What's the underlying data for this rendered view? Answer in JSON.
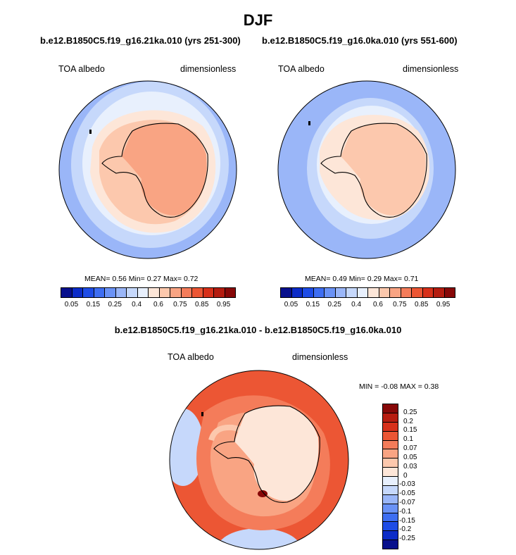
{
  "page": {
    "main_title": "DJF",
    "panel_left_title": "b.e12.B1850C5.f19_g16.21ka.010 (yrs 251-300)",
    "panel_right_title": "b.e12.B1850C5.f19_g16.0ka.010 (yrs 551-600)",
    "diff_title": "b.e12.B1850C5.f19_g16.21ka.010 - b.e12.B1850C5.f19_g16.0ka.010"
  },
  "panels": {
    "left": {
      "variable": "TOA albedo",
      "units": "dimensionless",
      "stats": "MEAN=   0.56  Min=   0.27  Max=   0.72"
    },
    "right": {
      "variable": "TOA albedo",
      "units": "dimensionless",
      "stats": "MEAN=   0.49  Min=   0.29  Max=   0.71"
    },
    "diff": {
      "variable": "TOA albedo",
      "units": "dimensionless",
      "stats": "MIN =  -0.08 MAX =   0.38"
    }
  },
  "colorbar_abs": {
    "colors": [
      "#08108c",
      "#0c2cc8",
      "#1e4ce6",
      "#3e6ef2",
      "#6a92f6",
      "#9ab6f8",
      "#c6d8fb",
      "#e8f0fd",
      "#fde6d8",
      "#fcc8ad",
      "#f9a483",
      "#f47c5a",
      "#ec5634",
      "#d7301a",
      "#b41c10",
      "#870808"
    ],
    "tick_labels": [
      "0.05",
      "0.15",
      "0.25",
      "0.4",
      "0.6",
      "0.75",
      "0.85",
      "0.95"
    ]
  },
  "colorbar_diff": {
    "colors": [
      "#870808",
      "#b71c10",
      "#d7301a",
      "#ec5634",
      "#f47c5a",
      "#f9a483",
      "#fcc8ad",
      "#fde6d8",
      "#e8f0fd",
      "#c6d8fb",
      "#9ab6f8",
      "#6a92f6",
      "#3e6ef2",
      "#1e4ce6",
      "#0c2cc8",
      "#08108c"
    ],
    "tick_labels": [
      "0.25",
      "0.2",
      "0.15",
      "0.1",
      "0.07",
      "0.05",
      "0.03",
      "0",
      "-0.03",
      "-0.05",
      "-0.07",
      "-0.1",
      "-0.15",
      "-0.2",
      "-0.25"
    ]
  },
  "map_colors": {
    "ocean_far": "#9ab6f8",
    "ocean_mid": "#c6d8fb",
    "ocean_near": "#e8f0fd",
    "shelf": "#fde6d8",
    "coast": "#fcc8ad",
    "ice": "#f9a483",
    "diff_outer": "#ec5634",
    "diff_mid": "#f47c5a",
    "diff_low": "#f9a483",
    "diff_faint": "#fcc8ad",
    "diff_land": "#fde6d8",
    "diff_neg": "#c6d8fb",
    "diff_max": "#870808"
  }
}
